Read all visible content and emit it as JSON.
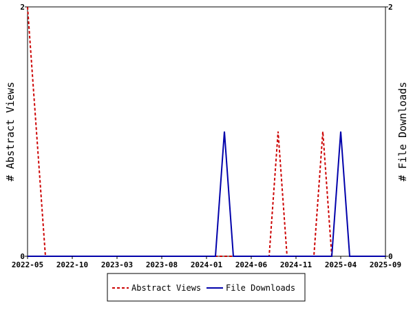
{
  "chart_data": {
    "type": "line",
    "x_tick_labels": [
      "2022-05",
      "2022-10",
      "2023-03",
      "2023-08",
      "2024-01",
      "2024-06",
      "2024-11",
      "2025-04",
      "2025-09"
    ],
    "y_left": {
      "label": "# Abstract Views",
      "ticks": [
        "0",
        "2"
      ],
      "ylim": [
        0,
        2
      ]
    },
    "y_right": {
      "label": "# File Downloads",
      "ticks": [
        "0",
        "2"
      ],
      "ylim": [
        0,
        2
      ]
    },
    "x_range": [
      "2022-05",
      "2025-09"
    ],
    "grid": false,
    "legend_position": "bottom-center",
    "series": [
      {
        "name": "Abstract Views",
        "color": "#cc0000",
        "style": "dashed",
        "axis": "left",
        "points": [
          [
            "2022-05",
            2
          ],
          [
            "2022-07",
            0
          ],
          [
            "2024-08",
            0
          ],
          [
            "2024-09",
            1
          ],
          [
            "2024-10",
            0
          ],
          [
            "2025-01",
            0
          ],
          [
            "2025-02",
            1
          ],
          [
            "2025-03",
            0
          ]
        ]
      },
      {
        "name": "File Downloads",
        "color": "#0000aa",
        "style": "solid",
        "axis": "right",
        "points": [
          [
            "2022-05",
            0
          ],
          [
            "2024-02",
            0
          ],
          [
            "2024-03",
            1
          ],
          [
            "2024-04",
            0
          ],
          [
            "2025-03",
            0
          ],
          [
            "2025-04",
            1
          ],
          [
            "2025-05",
            0
          ],
          [
            "2025-09",
            0
          ]
        ]
      }
    ]
  }
}
